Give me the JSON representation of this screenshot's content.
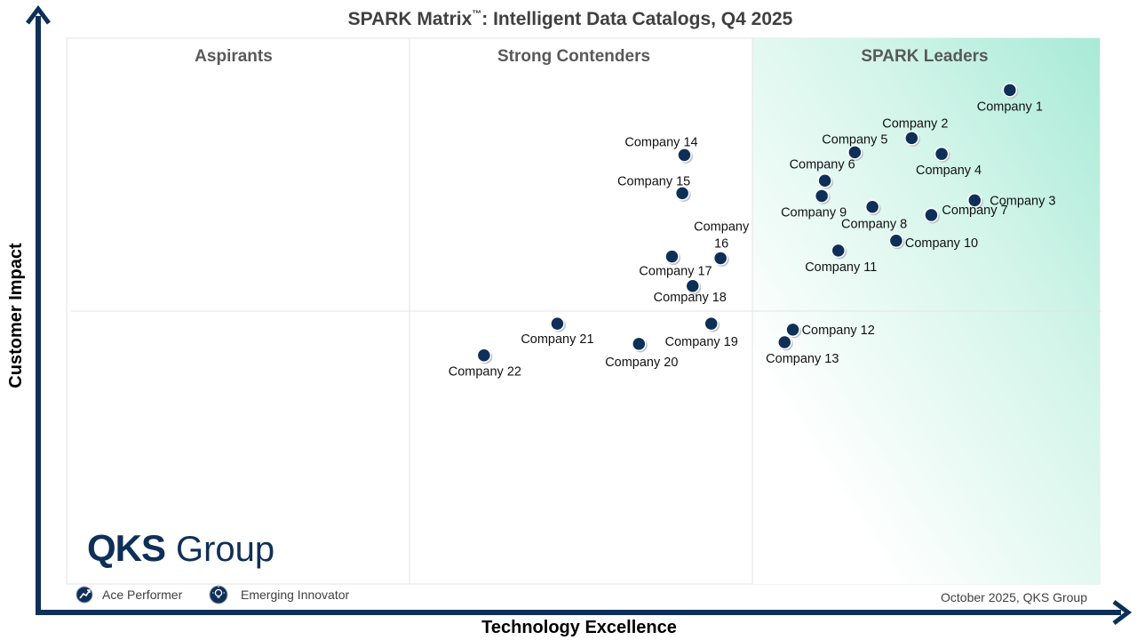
{
  "chart_data": {
    "type": "scatter",
    "title": "SPARK Matrix",
    "title_tm": "™",
    "title_rest": ": Intelligent Data Catalogs, Q4 2025",
    "xlabel": "Technology Excellence",
    "ylabel": "Customer Impact",
    "grid": false,
    "quadrants": [
      "Aspirants",
      "Strong Contenders",
      "SPARK Leaders"
    ],
    "points": [
      {
        "name": "Company 1",
        "x": 0.913,
        "y": 0.905
      },
      {
        "name": "Company 2",
        "x": 0.818,
        "y": 0.817
      },
      {
        "name": "Company 3",
        "x": 0.879,
        "y": 0.703
      },
      {
        "name": "Company 4",
        "x": 0.847,
        "y": 0.788
      },
      {
        "name": "Company 5",
        "x": 0.763,
        "y": 0.791
      },
      {
        "name": "Company 6",
        "x": 0.734,
        "y": 0.739
      },
      {
        "name": "Company 7",
        "x": 0.837,
        "y": 0.676
      },
      {
        "name": "Company 8",
        "x": 0.78,
        "y": 0.691
      },
      {
        "name": "Company 9",
        "x": 0.731,
        "y": 0.711
      },
      {
        "name": "Company 10",
        "x": 0.803,
        "y": 0.629
      },
      {
        "name": "Company 11",
        "x": 0.747,
        "y": 0.611
      },
      {
        "name": "Company 12",
        "x": 0.703,
        "y": 0.466
      },
      {
        "name": "Company 13",
        "x": 0.695,
        "y": 0.443
      },
      {
        "name": "Company 14",
        "x": 0.598,
        "y": 0.786
      },
      {
        "name": "Company 15",
        "x": 0.596,
        "y": 0.716
      },
      {
        "name": "Company 16",
        "x": 0.633,
        "y": 0.597
      },
      {
        "name": "Company 17",
        "x": 0.586,
        "y": 0.6
      },
      {
        "name": "Company 18",
        "x": 0.606,
        "y": 0.546
      },
      {
        "name": "Company 19",
        "x": 0.624,
        "y": 0.477
      },
      {
        "name": "Company 20",
        "x": 0.554,
        "y": 0.44
      },
      {
        "name": "Company 21",
        "x": 0.475,
        "y": 0.477
      },
      {
        "name": "Company 22",
        "x": 0.404,
        "y": 0.419
      }
    ],
    "legend": [
      "Ace Performer",
      "Emerging Innovator"
    ],
    "legend_position": "bottom-left",
    "note": "October 2025, QKS Group"
  },
  "logo": {
    "bold": "QKS",
    "light": "Group"
  },
  "colors": {
    "axis": "#0e2f57",
    "point": "#0e2f57",
    "leaders_accent": "#a8ead6",
    "divider": "#e3e3e3"
  }
}
